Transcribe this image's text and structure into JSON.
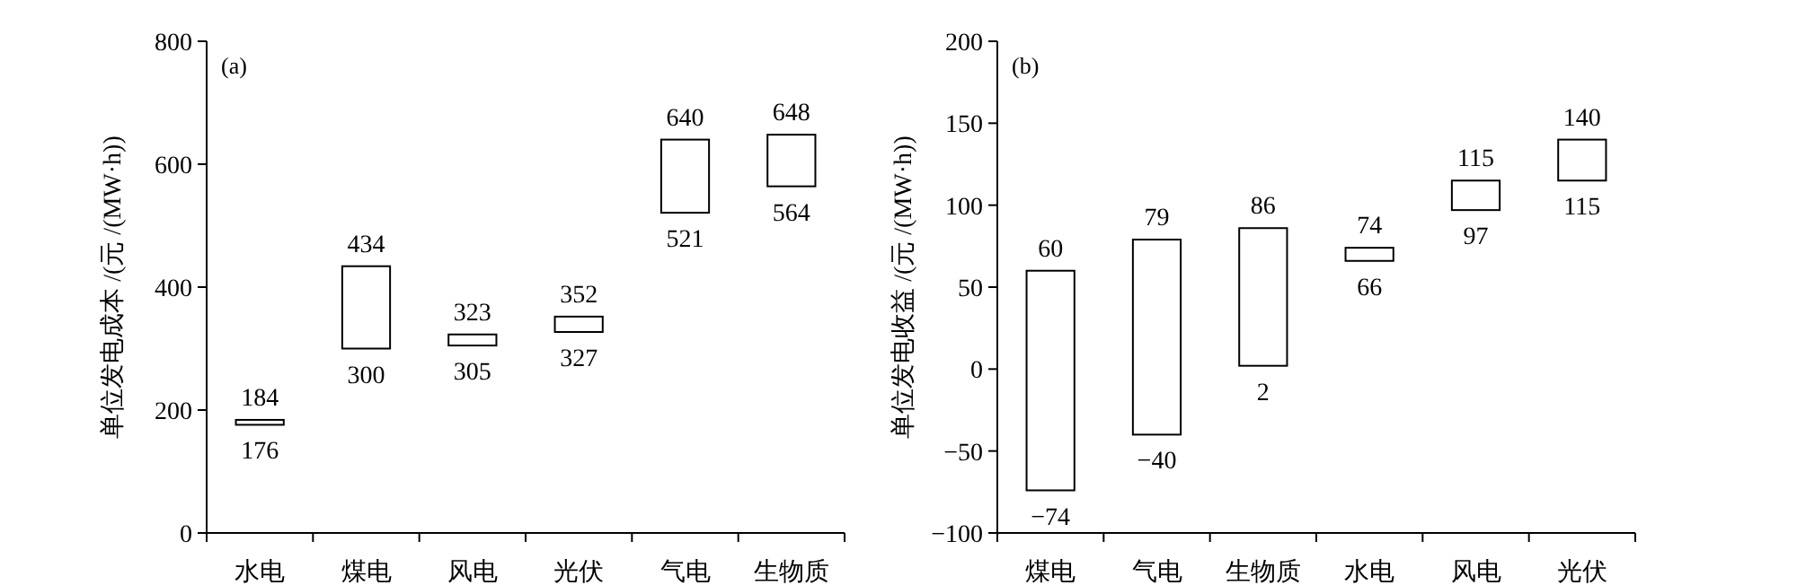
{
  "chart_data": [
    {
      "type": "bar",
      "ylabel": "单位发电成本 /(元 /(MW·h))",
      "categories": [
        "水电",
        "煤电",
        "风电",
        "光伏",
        "气电",
        "生物质"
      ],
      "base": [
        176,
        300,
        305,
        327,
        521,
        564
      ],
      "values": [
        8,
        134,
        18,
        25,
        119,
        84
      ],
      "color": "#ffffff",
      "ylim": [
        0,
        800
      ],
      "yticks": [
        0,
        200,
        400,
        600,
        800
      ],
      "annotations": [
        "(a)",
        {
          "text": "184",
          "x": "水电",
          "y": 184
        },
        {
          "text": "176",
          "x": "水电",
          "y": 176
        },
        {
          "text": "434",
          "x": "煤电",
          "y": 434
        },
        {
          "text": "300",
          "x": "煤电",
          "y": 300
        },
        {
          "text": "323",
          "x": "风电",
          "y": 323
        },
        {
          "text": "305",
          "x": "风电",
          "y": 305
        },
        {
          "text": "352",
          "x": "光伏",
          "y": 352
        },
        {
          "text": "327",
          "x": "光伏",
          "y": 327
        },
        {
          "text": "640",
          "x": "气电",
          "y": 640
        },
        {
          "text": "521",
          "x": "气电",
          "y": 521
        },
        {
          "text": "648",
          "x": "生物质",
          "y": 648
        },
        {
          "text": "564",
          "x": "生物质",
          "y": 564
        }
      ]
    },
    {
      "type": "bar",
      "ylabel": "单位发电收益 /(元 /(MW·h))",
      "categories": [
        "煤电",
        "气电",
        "生物质",
        "水电",
        "风电",
        "光伏"
      ],
      "base": [
        -74,
        -40,
        2,
        66,
        97,
        115
      ],
      "values": [
        134,
        119,
        84,
        8,
        18,
        25
      ],
      "color": "#ffffff",
      "ylim": [
        -100,
        200
      ],
      "yticks": [
        {
          "value": -100,
          "label": "−100"
        },
        {
          "value": -50,
          "label": "−50"
        },
        0,
        50,
        100,
        150,
        200
      ],
      "annotations": [
        "(b)",
        {
          "text": "60",
          "x": "煤电",
          "y": 60
        },
        {
          "text": "−74",
          "x": "煤电",
          "y": -74
        },
        {
          "text": "79",
          "x": "气电",
          "y": 79
        },
        {
          "text": "−40",
          "x": "气电",
          "y": -40
        },
        {
          "text": "86",
          "x": "生物质",
          "y": 86
        },
        {
          "text": "2",
          "x": "生物质",
          "y": 2
        },
        {
          "text": "74",
          "x": "水电",
          "y": 74
        },
        {
          "text": "66",
          "x": "水电",
          "y": 66
        },
        {
          "text": "115",
          "x": "风电",
          "y": 115
        },
        {
          "text": "97",
          "x": "风电",
          "y": 97
        },
        {
          "text": "140",
          "x": "光伏",
          "y": 140
        },
        {
          "text": "115",
          "x": "光伏",
          "y": 115
        }
      ]
    }
  ]
}
